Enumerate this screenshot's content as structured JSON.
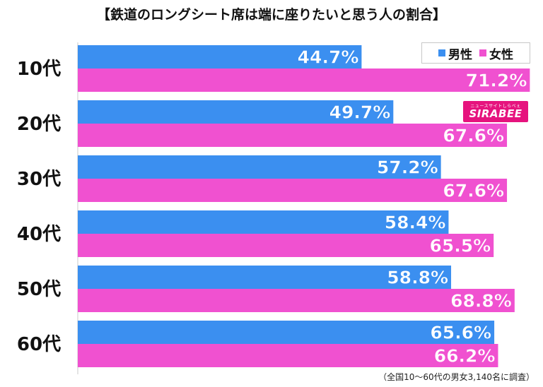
{
  "chart_data": {
    "type": "bar",
    "orientation": "horizontal",
    "title": "【鉄道のロングシート席は端に座りたいと思う人の割合】",
    "categories": [
      "10代",
      "20代",
      "30代",
      "40代",
      "50代",
      "60代"
    ],
    "series": [
      {
        "name": "男性",
        "color": "#3b8ff0",
        "values": [
          44.7,
          49.7,
          57.2,
          58.4,
          58.8,
          65.6
        ]
      },
      {
        "name": "女性",
        "color": "#f051d0",
        "values": [
          71.2,
          67.6,
          67.6,
          65.5,
          68.8,
          66.2
        ]
      }
    ],
    "value_suffix": "%",
    "xlim": [
      0,
      75
    ],
    "legend_position": "top-right",
    "grid": false
  },
  "legend": {
    "male": "男性",
    "female": "女性"
  },
  "logo": {
    "tag": "ニュースサイトしらべぇ",
    "name": "SIRABEE"
  },
  "footnote": "（全国10～60代の男女3,140名に調査）"
}
